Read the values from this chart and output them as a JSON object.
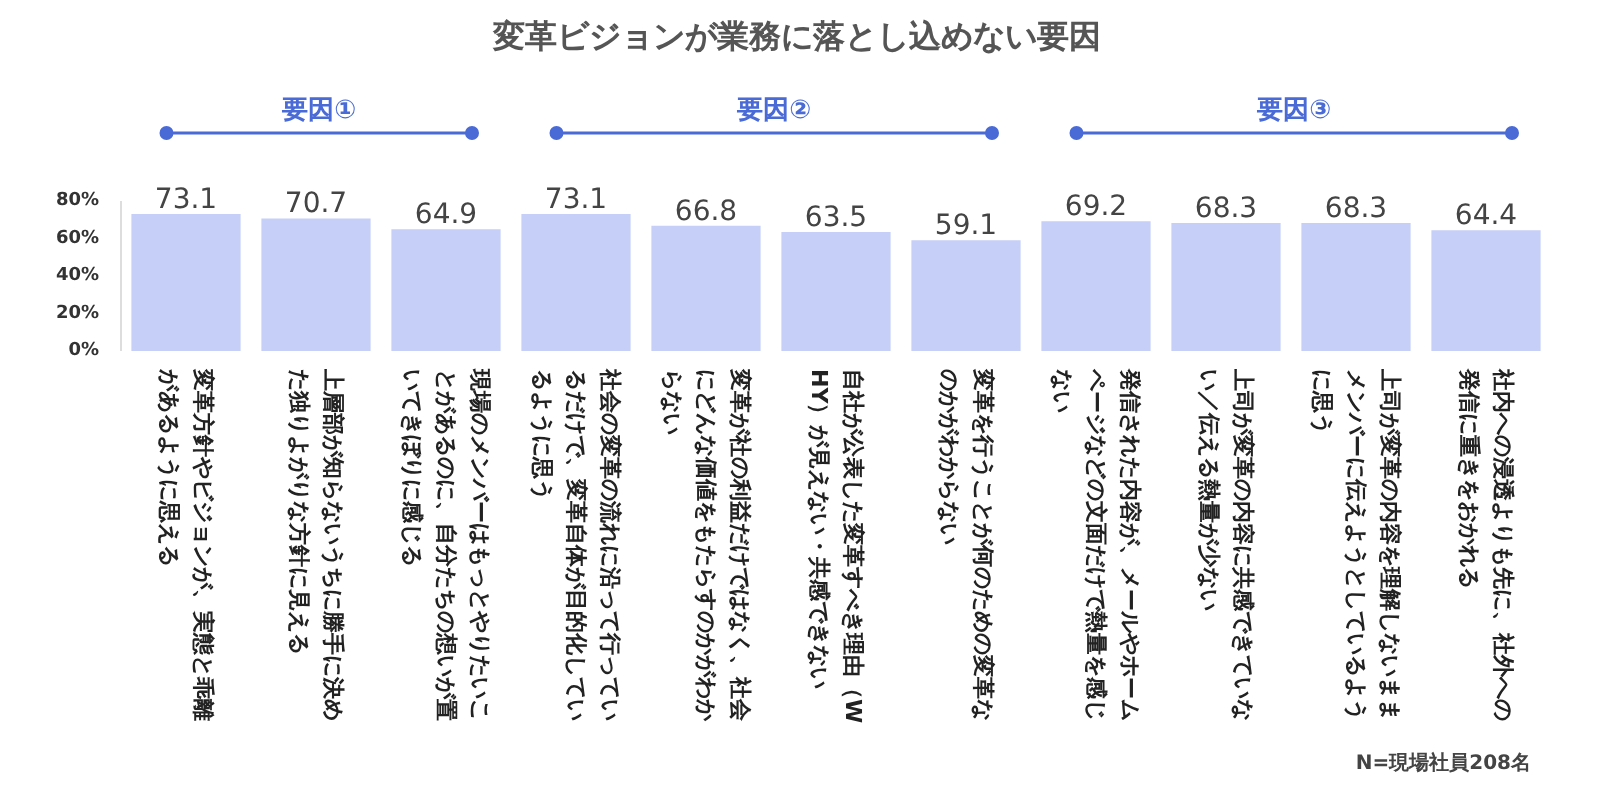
{
  "chart_data": {
    "type": "bar",
    "title": "変革ビジョンが業務に落とし込めない要因",
    "categories": [
      "変革方針やビジョンが、実態と乖離があるように思える",
      "上層部が知らないうちに勝手に決めた独りよがりな方針に見える",
      "現場のメンバーはもっとやりたいことがあるのに、自分たちの想いが置いてきぼりに感じる",
      "社会の変革の流れに沿って行っているだけで、変革自体が目的化しているように思う",
      "変革が社の利益だけではなく、社会にどんな価値をもたらすのかがわからない",
      "自社が公表した変革すべき理由（WHY）が見えない・共感できない",
      "変革を行うことが何のための変革なのかがわからない",
      "発信された内容が、メールやホームページなどの文面だけで熱量を感じない",
      "上司が変革の内容に共感できていない／伝える熱量が少ない",
      "上司が変革の内容を理解しないままメンバーに伝えようとしているように思う",
      "社内への浸透よりも先に、社外への発信に重きをおかれる"
    ],
    "values": [
      73.1,
      70.7,
      64.9,
      73.1,
      66.8,
      63.5,
      59.1,
      69.2,
      68.3,
      68.3,
      64.4
    ],
    "color": "#c5cff7",
    "ylim": [
      0,
      80
    ],
    "yticks": [
      {
        "value": 0,
        "label": "0%"
      },
      {
        "value": 20,
        "label": "20%"
      },
      {
        "value": 40,
        "label": "40%"
      },
      {
        "value": 60,
        "label": "60%"
      },
      {
        "value": 80,
        "label": "80%"
      }
    ],
    "data_labels": true,
    "grid": false,
    "annotations": [
      "要因①",
      "要因②",
      "要因③",
      "N=現場社員208名"
    ]
  }
}
